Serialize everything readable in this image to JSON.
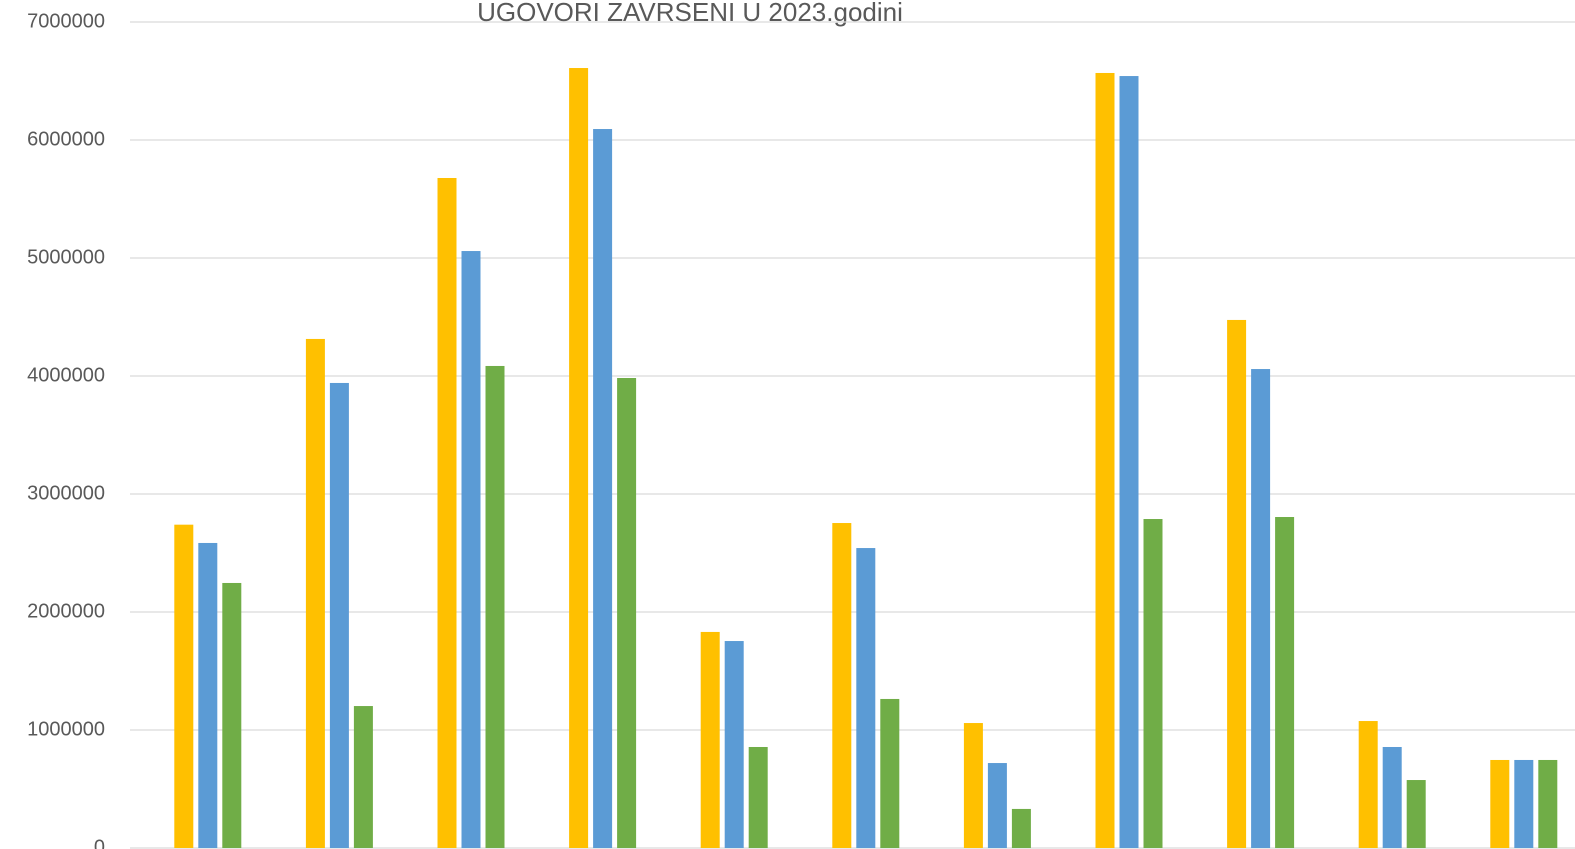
{
  "chart_data": {
    "type": "bar",
    "title": "UGOVORI  ZAVRSENI U 2023.godini",
    "categories": [
      null,
      null,
      null,
      null,
      null,
      null,
      null,
      null,
      null,
      null,
      null
    ],
    "series": [
      {
        "color": "#ffc000",
        "values": [
          2740000,
          4314000,
          5678000,
          6610000,
          1831000,
          2754000,
          1059000,
          6568000,
          4475000,
          1076000,
          746000
        ]
      },
      {
        "color": "#5b9bd5",
        "values": [
          2585000,
          3941000,
          5059000,
          6093000,
          1754000,
          2542000,
          720000,
          6542000,
          4059000,
          856000,
          746000
        ]
      },
      {
        "color": "#70ad47",
        "values": [
          2246000,
          1203000,
          4085000,
          3983000,
          856000,
          1263000,
          331000,
          2788000,
          2805000,
          576000,
          746000
        ]
      }
    ],
    "ylim": [
      0,
      7000000
    ],
    "yticks": [
      0,
      1000000,
      2000000,
      3000000,
      4000000,
      5000000,
      6000000,
      7000000
    ],
    "grid": true
  }
}
